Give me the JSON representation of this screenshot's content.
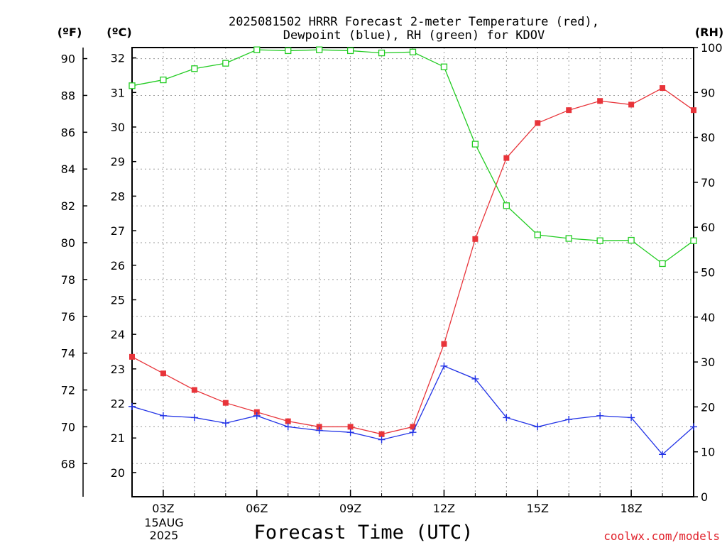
{
  "chart_data": {
    "type": "line",
    "title_line1": "2025081502 HRRR Forecast 2-meter Temperature (red),",
    "title_line2": "Dewpoint (blue), RH (green) for KDOV",
    "xlabel": "Forecast Time (UTC)",
    "credit": "coolwx.com/models",
    "date_label": [
      "15AUG",
      "2025"
    ],
    "axes": {
      "fahrenheit": {
        "label": "(ºF)",
        "range": [
          66.2,
          90.6
        ],
        "ticks": [
          68,
          70,
          72,
          74,
          76,
          78,
          80,
          82,
          84,
          86,
          88,
          90
        ]
      },
      "celsius": {
        "label": "(ºC)",
        "range": [
          19.3,
          32.3
        ],
        "ticks": [
          20,
          21,
          22,
          23,
          24,
          25,
          26,
          27,
          28,
          29,
          30,
          31,
          32
        ]
      },
      "rh": {
        "label": "(RH)",
        "range": [
          0,
          100
        ],
        "ticks": [
          0,
          10,
          20,
          30,
          40,
          50,
          60,
          70,
          80,
          90,
          100
        ]
      }
    },
    "x": {
      "range": [
        2,
        20
      ],
      "hours": [
        2,
        3,
        4,
        5,
        6,
        7,
        8,
        9,
        10,
        11,
        12,
        13,
        14,
        15,
        16,
        17,
        18,
        19,
        20
      ],
      "ticks": [
        3,
        6,
        9,
        12,
        15,
        18
      ],
      "tick_labels": [
        "03Z",
        "06Z",
        "09Z",
        "12Z",
        "15Z",
        "18Z"
      ]
    },
    "series": [
      {
        "name": "Temperature",
        "unit": "F",
        "color": "#e8343a",
        "marker": "filled-square",
        "values": [
          73.8,
          72.9,
          72.0,
          71.3,
          70.8,
          70.3,
          70.0,
          70.0,
          69.6,
          70.0,
          74.5,
          80.2,
          84.6,
          86.5,
          87.2,
          87.7,
          87.5,
          88.4,
          87.2
        ]
      },
      {
        "name": "Dewpoint",
        "unit": "F",
        "color": "#2233e6",
        "marker": "plus",
        "values": [
          71.1,
          70.6,
          70.5,
          70.2,
          70.6,
          70.0,
          69.8,
          69.7,
          69.3,
          69.7,
          73.3,
          72.6,
          70.5,
          70.0,
          70.4,
          70.6,
          70.5,
          68.5,
          70.0
        ]
      },
      {
        "name": "RH",
        "unit": "%",
        "color": "#22cc22",
        "marker": "open-square",
        "values": [
          91.5,
          92.8,
          95.3,
          96.5,
          99.5,
          99.3,
          99.5,
          99.3,
          98.8,
          99.0,
          95.7,
          78.5,
          64.8,
          58.3,
          57.5,
          57.0,
          57.1,
          51.9,
          57.0
        ]
      }
    ]
  }
}
